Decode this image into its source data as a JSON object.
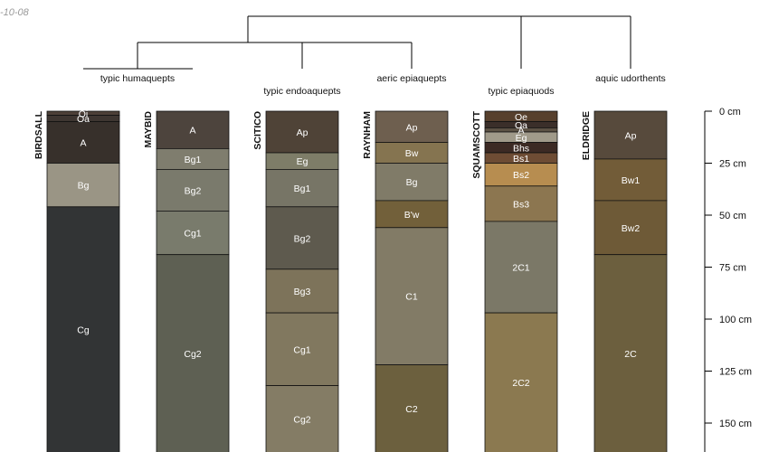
{
  "header": {
    "date_fragment": "-10-08"
  },
  "dendrogram": {
    "group_labels": [
      "typic humaquepts",
      "typic endoaquepts",
      "aeric epiaquepts",
      "typic epiaquods",
      "aquic udorthents"
    ]
  },
  "depth_axis": {
    "unit": "cm",
    "ticks": [
      0,
      25,
      50,
      75,
      100,
      125,
      150
    ],
    "tick_labels": [
      "0 cm",
      "25 cm",
      "50 cm",
      "75 cm",
      "100 cm",
      "125 cm",
      "150 cm"
    ]
  },
  "profiles": [
    {
      "name": "BIRDSALL",
      "horizons": [
        {
          "label": "Oi",
          "top": 0,
          "bottom": 2,
          "color": "#4d4038"
        },
        {
          "label": "Oa",
          "top": 2,
          "bottom": 5,
          "color": "#3e3631"
        },
        {
          "label": "A",
          "top": 5,
          "bottom": 25,
          "color": "#37302b"
        },
        {
          "label": "Bg",
          "top": 25,
          "bottom": 46,
          "color": "#9a9585"
        },
        {
          "label": "Cg",
          "top": 46,
          "bottom": 165,
          "color": "#323435"
        }
      ]
    },
    {
      "name": "MAYBID",
      "horizons": [
        {
          "label": "A",
          "top": 0,
          "bottom": 18,
          "color": "#4d443d"
        },
        {
          "label": "Bg1",
          "top": 18,
          "bottom": 28,
          "color": "#7f7d6e"
        },
        {
          "label": "Bg2",
          "top": 28,
          "bottom": 48,
          "color": "#7a7a6c"
        },
        {
          "label": "Cg1",
          "top": 48,
          "bottom": 69,
          "color": "#797b6c"
        },
        {
          "label": "Cg2",
          "top": 69,
          "bottom": 165,
          "color": "#5e6053"
        }
      ]
    },
    {
      "name": "SCITICO",
      "horizons": [
        {
          "label": "Ap",
          "top": 0,
          "bottom": 20,
          "color": "#4f4337"
        },
        {
          "label": "Eg",
          "top": 20,
          "bottom": 28,
          "color": "#7e7d68"
        },
        {
          "label": "Bg1",
          "top": 28,
          "bottom": 46,
          "color": "#777566"
        },
        {
          "label": "Bg2",
          "top": 46,
          "bottom": 76,
          "color": "#5e5a4e"
        },
        {
          "label": "Bg3",
          "top": 76,
          "bottom": 97,
          "color": "#7d735a"
        },
        {
          "label": "Cg1",
          "top": 97,
          "bottom": 132,
          "color": "#81785f"
        },
        {
          "label": "Cg2",
          "top": 132,
          "bottom": 165,
          "color": "#847c65"
        }
      ]
    },
    {
      "name": "RAYNHAM",
      "horizons": [
        {
          "label": "Ap",
          "top": 0,
          "bottom": 15,
          "color": "#6e5f4f"
        },
        {
          "label": "Bw",
          "top": 15,
          "bottom": 25,
          "color": "#857450"
        },
        {
          "label": "Bg",
          "top": 25,
          "bottom": 43,
          "color": "#807b68"
        },
        {
          "label": "B'w",
          "top": 43,
          "bottom": 56,
          "color": "#72603a"
        },
        {
          "label": "C1",
          "top": 56,
          "bottom": 122,
          "color": "#827b66"
        },
        {
          "label": "C2",
          "top": 122,
          "bottom": 165,
          "color": "#6c603e"
        }
      ]
    },
    {
      "name": "SQUAMSCOTT",
      "horizons": [
        {
          "label": "Oe",
          "top": 0,
          "bottom": 5,
          "color": "#57402d"
        },
        {
          "label": "Oa",
          "top": 5,
          "bottom": 8,
          "color": "#3b2f2a"
        },
        {
          "label": "A",
          "top": 8,
          "bottom": 10,
          "color": "#5c5245"
        },
        {
          "label": "Eg",
          "top": 10,
          "bottom": 15,
          "color": "#a09a8a"
        },
        {
          "label": "Bhs",
          "top": 15,
          "bottom": 20,
          "color": "#3c2a24"
        },
        {
          "label": "Bs1",
          "top": 20,
          "bottom": 25,
          "color": "#6e4c34"
        },
        {
          "label": "Bs2",
          "top": 25,
          "bottom": 36,
          "color": "#b78d50"
        },
        {
          "label": "Bs3",
          "top": 36,
          "bottom": 53,
          "color": "#8c7650"
        },
        {
          "label": "2C1",
          "top": 53,
          "bottom": 97,
          "color": "#7b7867"
        },
        {
          "label": "2C2",
          "top": 97,
          "bottom": 165,
          "color": "#8b7950"
        }
      ]
    },
    {
      "name": "ELDRIDGE",
      "horizons": [
        {
          "label": "Ap",
          "top": 0,
          "bottom": 23,
          "color": "#574a3c"
        },
        {
          "label": "Bw1",
          "top": 23,
          "bottom": 43,
          "color": "#725c38"
        },
        {
          "label": "Bw2",
          "top": 43,
          "bottom": 69,
          "color": "#6e5a37"
        },
        {
          "label": "2C",
          "top": 69,
          "bottom": 165,
          "color": "#6c5f3e"
        }
      ]
    }
  ]
}
